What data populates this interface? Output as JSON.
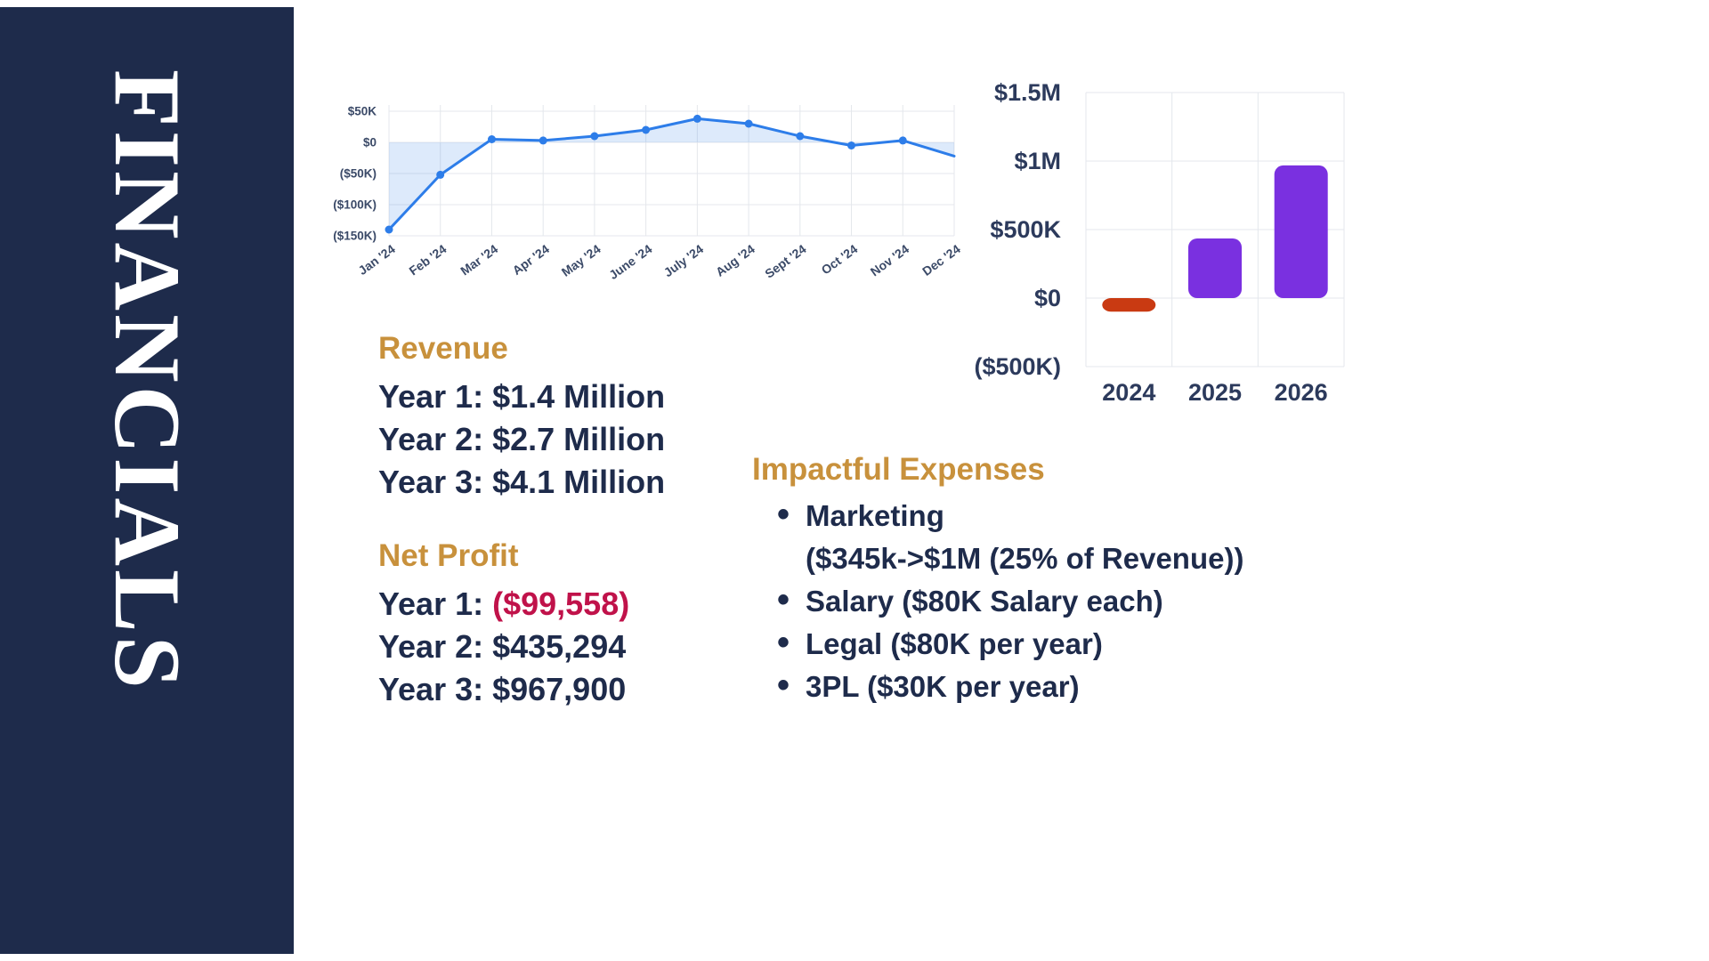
{
  "sidebar": {
    "title": "FINANCIALS"
  },
  "colors": {
    "sidebar_navy": "#1e2b4b",
    "body_navy": "#1e2b4b",
    "heading_gold": "#c8913c",
    "negative_red": "#c0124a",
    "line_blue": "#2d7de9",
    "bar_purple": "#7a30e0",
    "bar_red": "#c93a12"
  },
  "revenue": {
    "heading": "Revenue",
    "lines": [
      "Year 1: $1.4 Million",
      "Year 2: $2.7 Million",
      "Year 3: $4.1 Million"
    ]
  },
  "net_profit": {
    "heading": "Net Profit",
    "lines": [
      {
        "prefix": "Year 1: ",
        "value": "($99,558)"
      },
      {
        "prefix": "Year 2: ",
        "value": "$435,294"
      },
      {
        "prefix": "Year 3: ",
        "value": "$967,900"
      }
    ]
  },
  "expenses": {
    "heading": "Impactful Expenses",
    "items": [
      {
        "text": "Marketing",
        "sub": "($345k->$1M (25% of Revenue))"
      },
      {
        "text": "Salary ($80K Salary each)"
      },
      {
        "text": "Legal ($80K per year)"
      },
      {
        "text": "3PL ($30K  per year)"
      }
    ]
  },
  "chart_data": [
    {
      "type": "line",
      "x": [
        "Jan '24",
        "Feb '24",
        "Mar '24",
        "Apr '24",
        "May '24",
        "June '24",
        "July '24",
        "Aug '24",
        "Sept '24",
        "Oct '24",
        "Nov '24",
        "Dec '24"
      ],
      "values": [
        -140000,
        -52000,
        5000,
        3000,
        10000,
        20000,
        38000,
        30000,
        10000,
        -5000,
        3000,
        -22000
      ],
      "y_ticks": [
        {
          "label": "$50K",
          "value": 50000
        },
        {
          "label": "$0",
          "value": 0
        },
        {
          "label": "($50K)",
          "value": -50000
        },
        {
          "label": "($100K)",
          "value": -100000
        },
        {
          "label": "($150K)",
          "value": -150000
        }
      ],
      "ylim": [
        -150000,
        70000
      ],
      "grid": true,
      "legend": "none",
      "line_color": "#2d7de9",
      "fill_color": "rgba(45,125,233,0.16)",
      "grid_color": "#e4e7ec",
      "axis_color": "#3b4a68"
    },
    {
      "type": "bar",
      "categories": [
        "2024",
        "2025",
        "2026"
      ],
      "values": [
        -99558,
        435294,
        967900
      ],
      "bar_colors": [
        "#c93a12",
        "#7a30e0",
        "#7a30e0"
      ],
      "y_ticks": [
        {
          "label": "$1.5M",
          "value": 1500000
        },
        {
          "label": "$1M",
          "value": 1000000
        },
        {
          "label": "$500K",
          "value": 500000
        },
        {
          "label": "$0",
          "value": 0
        },
        {
          "label": "($500K)",
          "value": -500000
        }
      ],
      "ylim": [
        -500000,
        1500000
      ],
      "grid": true,
      "legend": "none",
      "grid_color": "#e4e7ec",
      "axis_color": "#2c3a5c"
    }
  ]
}
